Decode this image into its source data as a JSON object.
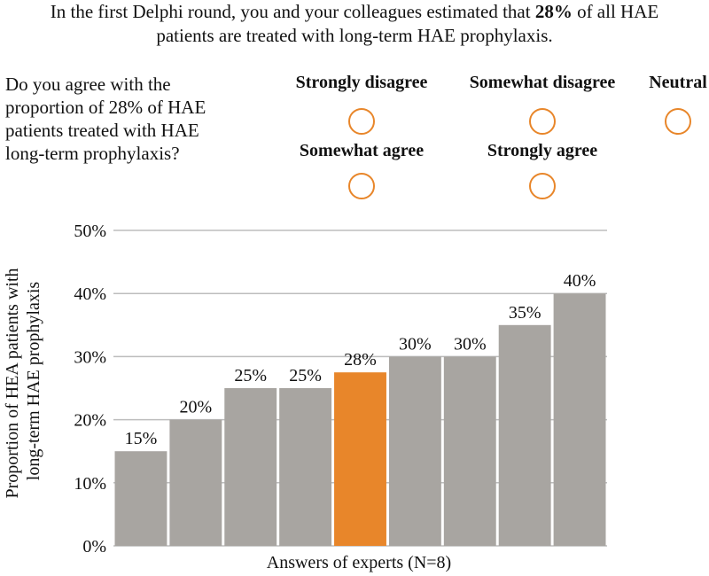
{
  "intro": {
    "part1": "In the first Delphi round, you and your colleagues estimated that ",
    "highlight": "28%",
    "part2": " of all HAE",
    "line2": "patients are treated with long-term HAE prophylaxis."
  },
  "question": {
    "text": "Do you agree with the proportion of 28% of HAE patients treated with HAE long-term prophylaxis?"
  },
  "options": [
    "Strongly disagree",
    "Somewhat disagree",
    "Neutral",
    "Somewhat agree",
    "Strongly agree"
  ],
  "colors": {
    "accent": "#E8862A",
    "bar": "#A8A5A1",
    "highlight_bar": "#E8862A",
    "grid": "#BDBDBD"
  },
  "chart_data": {
    "type": "bar",
    "categories": [
      "",
      "",
      "",
      "",
      "",
      "",
      "",
      "",
      ""
    ],
    "values": [
      15,
      20,
      25,
      25,
      27.5,
      30,
      30,
      35,
      40
    ],
    "data_labels": [
      "15%",
      "20%",
      "25%",
      "25%",
      "28%",
      "30%",
      "30%",
      "35%",
      "40%"
    ],
    "highlight_index": 4,
    "ylabel_line1": "Proportion of HEA patients with",
    "ylabel_line2": "long-term HAE prophylaxis",
    "xlabel": "Answers of experts (N=8)",
    "ylim": [
      0,
      50
    ],
    "yticks": [
      0,
      10,
      20,
      30,
      40,
      50
    ],
    "ytick_labels": [
      "0%",
      "10%",
      "20%",
      "30%",
      "40%",
      "50%"
    ],
    "grid": true
  }
}
